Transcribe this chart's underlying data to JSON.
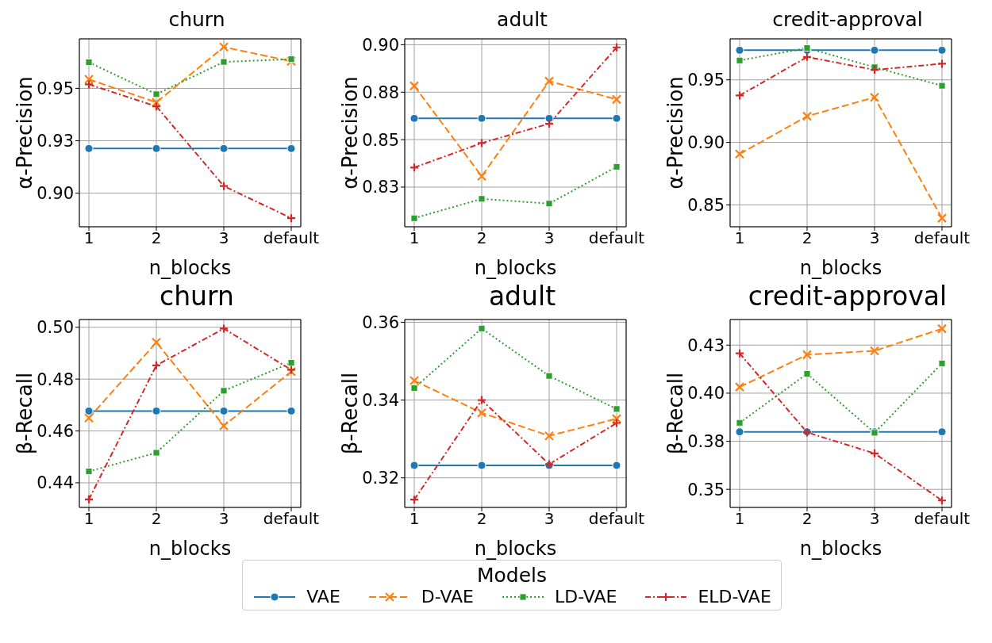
{
  "chart_data": [
    {
      "type": "line",
      "title": "churn",
      "xlabel": "n_blocks",
      "ylabel": "α-Precision",
      "categories": [
        "1",
        "2",
        "3",
        "default"
      ],
      "ylim": [
        0.884,
        0.9736
      ],
      "yticks": [
        {
          "value": 0.9,
          "label": "0.90"
        },
        {
          "value": 0.925,
          "label": "0.93"
        },
        {
          "value": 0.95,
          "label": "0.95"
        }
      ],
      "grid": true,
      "legend": "bottom",
      "legend_title": "Models",
      "series": [
        {
          "name": "VAE",
          "color": "#1f77b4",
          "marker": "circle",
          "line_style": "solid",
          "values": [
            0.9213,
            0.9213,
            0.9213,
            0.9213
          ]
        },
        {
          "name": "D-VAE",
          "color": "#ff7f0e",
          "marker": "cross",
          "line_style": "dashed",
          "values": [
            0.9543,
            0.9433,
            0.9697,
            0.9629
          ]
        },
        {
          "name": "LD-VAE",
          "color": "#2ca02c",
          "marker": "square",
          "line_style": "dotted",
          "values": [
            0.9624,
            0.9472,
            0.9626,
            0.9639
          ]
        },
        {
          "name": "ELD-VAE",
          "color": "#d62728",
          "marker": "plus",
          "line_style": "dashdot",
          "values": [
            0.9519,
            0.9414,
            0.9034,
            0.8881
          ]
        }
      ]
    },
    {
      "type": "line",
      "title": "adult",
      "xlabel": "n_blocks",
      "ylabel": "α-Precision",
      "categories": [
        "1",
        "2",
        "3",
        "default"
      ],
      "ylim": [
        0.8041,
        0.9031
      ],
      "yticks": [
        {
          "value": 0.825,
          "label": "0.83"
        },
        {
          "value": 0.85,
          "label": "0.85"
        },
        {
          "value": 0.875,
          "label": "0.88"
        },
        {
          "value": 0.9,
          "label": "0.90"
        }
      ],
      "grid": true,
      "series": [
        {
          "color": "#1f77b4",
          "marker": "circle",
          "line_style": "solid",
          "values": [
            0.8612,
            0.8612,
            0.8612,
            0.8612
          ]
        },
        {
          "color": "#ff7f0e",
          "marker": "cross",
          "line_style": "dashed",
          "values": [
            0.8783,
            0.8307,
            0.8808,
            0.8712
          ]
        },
        {
          "color": "#2ca02c",
          "marker": "square",
          "line_style": "dotted",
          "values": [
            0.8086,
            0.8188,
            0.8163,
            0.8357
          ]
        },
        {
          "color": "#d62728",
          "marker": "plus",
          "line_style": "dashdot",
          "values": [
            0.8353,
            0.8482,
            0.8584,
            0.8986
          ]
        }
      ]
    },
    {
      "type": "line",
      "title": "credit-approval",
      "xlabel": "n_blocks",
      "ylabel": "α-Precision",
      "categories": [
        "1",
        "2",
        "3",
        "default"
      ],
      "ylim": [
        0.8325,
        0.9828
      ],
      "yticks": [
        {
          "value": 0.85,
          "label": "0.85"
        },
        {
          "value": 0.9,
          "label": "0.90"
        },
        {
          "value": 0.95,
          "label": "0.95"
        }
      ],
      "grid": true,
      "series": [
        {
          "color": "#1f77b4",
          "marker": "circle",
          "line_style": "solid",
          "values": [
            0.9737,
            0.9737,
            0.9737,
            0.9737
          ]
        },
        {
          "color": "#ff7f0e",
          "marker": "cross",
          "line_style": "dashed",
          "values": [
            0.8907,
            0.9209,
            0.936,
            0.8394
          ]
        },
        {
          "color": "#2ca02c",
          "marker": "square",
          "line_style": "dotted",
          "values": [
            0.9655,
            0.9755,
            0.9601,
            0.9453
          ]
        },
        {
          "color": "#d62728",
          "marker": "plus",
          "line_style": "dashdot",
          "values": [
            0.9375,
            0.9683,
            0.958,
            0.9629
          ]
        }
      ]
    },
    {
      "type": "line",
      "title": "churn",
      "xlabel": "n_blocks",
      "ylabel": "β-Recall",
      "categories": [
        "1",
        "2",
        "3",
        "default"
      ],
      "ylim": [
        0.4305,
        0.503
      ],
      "yticks": [
        {
          "value": 0.44,
          "label": "0.44"
        },
        {
          "value": 0.46,
          "label": "0.46"
        },
        {
          "value": 0.48,
          "label": "0.48"
        },
        {
          "value": 0.5,
          "label": "0.50"
        }
      ],
      "grid": true,
      "series": [
        {
          "color": "#1f77b4",
          "marker": "circle",
          "line_style": "solid",
          "values": [
            0.4677,
            0.4677,
            0.4677,
            0.4677
          ]
        },
        {
          "color": "#ff7f0e",
          "marker": "cross",
          "line_style": "dashed",
          "values": [
            0.465,
            0.4942,
            0.462,
            0.4829
          ]
        },
        {
          "color": "#2ca02c",
          "marker": "square",
          "line_style": "dotted",
          "values": [
            0.4444,
            0.4516,
            0.4755,
            0.4863
          ]
        },
        {
          "color": "#d62728",
          "marker": "plus",
          "line_style": "dashdot",
          "values": [
            0.4336,
            0.4853,
            0.4995,
            0.4836
          ]
        }
      ]
    },
    {
      "type": "line",
      "title": "adult",
      "xlabel": "n_blocks",
      "ylabel": "β-Recall",
      "categories": [
        "1",
        "2",
        "3",
        "default"
      ],
      "ylim": [
        0.3124,
        0.3607
      ],
      "yticks": [
        {
          "value": 0.32,
          "label": "0.32"
        },
        {
          "value": 0.34,
          "label": "0.34"
        },
        {
          "value": 0.36,
          "label": "0.36"
        }
      ],
      "grid": true,
      "series": [
        {
          "color": "#1f77b4",
          "marker": "circle",
          "line_style": "solid",
          "values": [
            0.3232,
            0.3232,
            0.3232,
            0.3232
          ]
        },
        {
          "color": "#ff7f0e",
          "marker": "cross",
          "line_style": "dashed",
          "values": [
            0.345,
            0.3367,
            0.3308,
            0.3352
          ]
        },
        {
          "color": "#2ca02c",
          "marker": "square",
          "line_style": "dotted",
          "values": [
            0.3431,
            0.3584,
            0.3462,
            0.3377
          ]
        },
        {
          "color": "#d62728",
          "marker": "plus",
          "line_style": "dashdot",
          "values": [
            0.3144,
            0.34,
            0.3235,
            0.3341
          ]
        }
      ]
    },
    {
      "type": "line",
      "title": "credit-approval",
      "xlabel": "n_blocks",
      "ylabel": "β-Recall",
      "categories": [
        "1",
        "2",
        "3",
        "default"
      ],
      "ylim": [
        0.3406,
        0.4383
      ],
      "yticks": [
        {
          "value": 0.35,
          "label": "0.35"
        },
        {
          "value": 0.375,
          "label": "0.38"
        },
        {
          "value": 0.4,
          "label": "0.40"
        },
        {
          "value": 0.425,
          "label": "0.43"
        }
      ],
      "grid": true,
      "series": [
        {
          "color": "#1f77b4",
          "marker": "circle",
          "line_style": "solid",
          "values": [
            0.3799,
            0.3799,
            0.3799,
            0.3799
          ]
        },
        {
          "color": "#ff7f0e",
          "marker": "cross",
          "line_style": "dashed",
          "values": [
            0.4032,
            0.42,
            0.422,
            0.4335
          ]
        },
        {
          "color": "#2ca02c",
          "marker": "square",
          "line_style": "dotted",
          "values": [
            0.3846,
            0.4101,
            0.3794,
            0.4155
          ]
        },
        {
          "color": "#d62728",
          "marker": "plus",
          "line_style": "dashdot",
          "values": [
            0.4207,
            0.3796,
            0.3687,
            0.3442
          ]
        }
      ]
    }
  ]
}
